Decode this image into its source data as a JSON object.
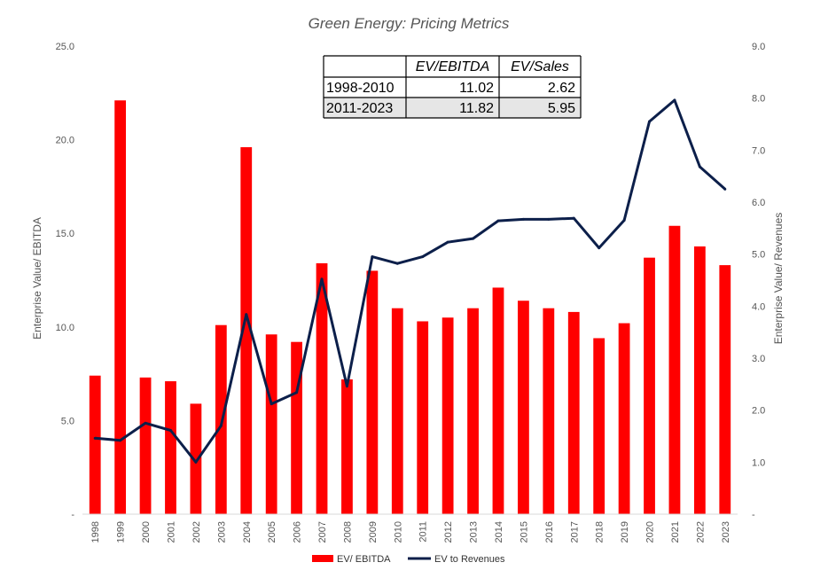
{
  "chart_data": {
    "type": "bar",
    "title": "Green Energy: Pricing Metrics",
    "ylabel": "Enterprise Value/ EBITDA",
    "y2label": "Enterprise Value/ Revenues",
    "ylim": [
      0,
      25
    ],
    "y2lim": [
      0,
      9
    ],
    "yticks": [
      "-",
      "5.0",
      "10.0",
      "15.0",
      "20.0",
      "25.0"
    ],
    "y2ticks": [
      "-",
      "1.0",
      "2.0",
      "3.0",
      "4.0",
      "5.0",
      "6.0",
      "7.0",
      "8.0",
      "9.0"
    ],
    "categories": [
      "1998",
      "1999",
      "2000",
      "2001",
      "2002",
      "2003",
      "2004",
      "2005",
      "2006",
      "2007",
      "2008",
      "2009",
      "2010",
      "2011",
      "2012",
      "2013",
      "2014",
      "2015",
      "2016",
      "2017",
      "2018",
      "2019",
      "2020",
      "2021",
      "2022",
      "2023"
    ],
    "series": [
      {
        "name": "EV/ EBITDA",
        "type": "bar",
        "axis": "left",
        "color": "#ff0000",
        "values": [
          7.4,
          22.1,
          7.3,
          7.1,
          5.9,
          10.1,
          19.6,
          9.6,
          9.2,
          13.4,
          7.2,
          13.0,
          11.0,
          10.3,
          10.5,
          11.0,
          12.1,
          11.4,
          11.0,
          10.8,
          9.4,
          10.2,
          13.7,
          15.4,
          14.3,
          13.3
        ]
      },
      {
        "name": "EV to Revenues",
        "type": "line",
        "axis": "right",
        "color": "#0c1f4a",
        "values": [
          1.46,
          1.42,
          1.75,
          1.61,
          1.0,
          1.7,
          3.84,
          2.12,
          2.34,
          4.52,
          2.46,
          4.95,
          4.82,
          4.95,
          5.23,
          5.3,
          5.64,
          5.67,
          5.67,
          5.69,
          5.12,
          5.65,
          7.55,
          7.96,
          6.68,
          6.25
        ]
      }
    ],
    "legend_position": "bottom",
    "grid": false,
    "table": {
      "headers": [
        "",
        "EV/EBITDA",
        "EV/Sales"
      ],
      "rows": [
        [
          "1998-2010",
          "11.02",
          "2.62"
        ],
        [
          "2011-2023",
          "11.82",
          "5.95"
        ]
      ]
    }
  }
}
